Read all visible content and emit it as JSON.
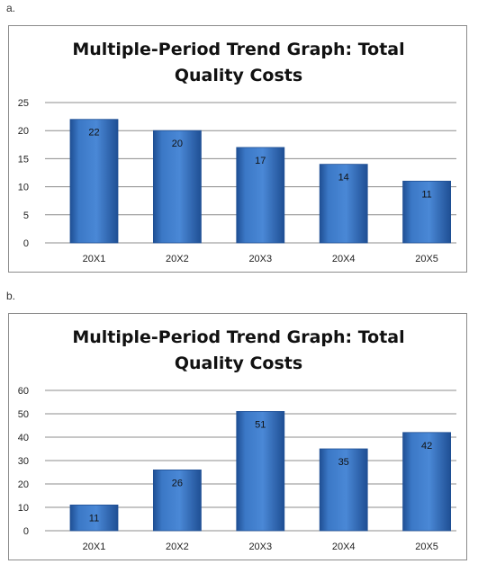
{
  "colors": {
    "bar": "#3b78c6",
    "bar_dark": "#1f4f94",
    "grid": "#8c8c8c",
    "border": "#8c8c8c"
  },
  "chart_data": [
    {
      "label": "a.",
      "type": "bar",
      "title_lines": [
        "Multiple-Period Trend Graph: Total",
        "Quality Costs"
      ],
      "categories": [
        "20X1",
        "20X2",
        "20X3",
        "20X4",
        "20X5"
      ],
      "values": [
        22,
        20,
        17,
        14,
        11
      ],
      "ylim": [
        0,
        25
      ],
      "yticks": [
        0,
        5,
        10,
        15,
        20,
        25
      ],
      "grid": true,
      "legend": "none",
      "data_labels": true
    },
    {
      "label": "b.",
      "type": "bar",
      "title_lines": [
        "Multiple-Period Trend Graph: Total",
        "Quality Costs"
      ],
      "categories": [
        "20X1",
        "20X2",
        "20X3",
        "20X4",
        "20X5"
      ],
      "values": [
        11,
        26,
        51,
        35,
        42
      ],
      "ylim": [
        0,
        60
      ],
      "yticks": [
        0,
        10,
        20,
        30,
        40,
        50,
        60
      ],
      "grid": true,
      "legend": "none",
      "data_labels": true
    }
  ]
}
